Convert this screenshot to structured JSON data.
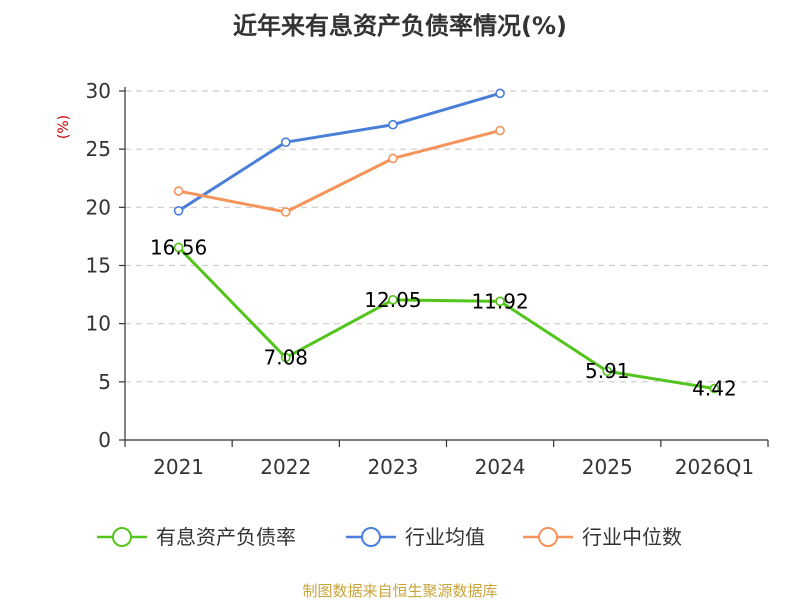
{
  "chart_data": {
    "type": "line",
    "title": "近年来有息资产负债率情况(%)",
    "ylabel": "(%)",
    "categories": [
      "2021",
      "2022",
      "2023",
      "2024",
      "2025",
      "2026Q1"
    ],
    "ylim": [
      0,
      30
    ],
    "yticks": [
      0,
      5,
      10,
      15,
      20,
      25,
      30
    ],
    "grid": true,
    "legend_position": "bottom",
    "series": [
      {
        "name": "有息资产负债率",
        "color": "#52c41a",
        "values": [
          16.56,
          7.08,
          12.05,
          11.92,
          5.91,
          4.42
        ],
        "labels": [
          "16.56",
          "7.08",
          "12.05",
          "11.92",
          "5.91",
          "4.42"
        ]
      },
      {
        "name": "行业均值",
        "color": "#4a7fd9",
        "values": [
          19.7,
          25.6,
          27.1,
          29.8,
          null,
          null
        ]
      },
      {
        "name": "行业中位数",
        "color": "#f5935a",
        "values": [
          21.4,
          19.6,
          24.2,
          26.6,
          null,
          null
        ]
      }
    ],
    "ylabel_color": "#cc0000"
  },
  "source": {
    "text": "制图数据来自恒生聚源数据库",
    "color": "#c9a53c"
  }
}
